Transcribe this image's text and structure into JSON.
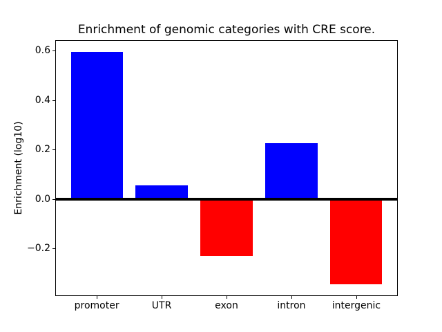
{
  "chart_data": {
    "type": "bar",
    "title": "Enrichment of genomic categories with CRE score.",
    "xlabel": "",
    "ylabel": "Enrichment (log10)",
    "categories": [
      "promoter",
      "UTR",
      "exon",
      "intron",
      "intergenic"
    ],
    "values": [
      0.595,
      0.055,
      -0.23,
      0.225,
      -0.345
    ],
    "bar_colors": [
      "#0000ff",
      "#0000ff",
      "#ff0000",
      "#0000ff",
      "#ff0000"
    ],
    "positive_color": "#0000ff",
    "negative_color": "#ff0000",
    "yticks": [
      0.6,
      0.4,
      0.2,
      0.0,
      -0.2
    ],
    "ytick_labels": [
      "0.6",
      "0.4",
      "0.2",
      "0.0",
      "−0.2"
    ],
    "ylim": [
      -0.392,
      0.642
    ],
    "bar_width_fraction": 0.8,
    "zero_line": true,
    "grid": false,
    "legend": null,
    "background_color": "#ffffff",
    "axis_color": "#000000"
  }
}
